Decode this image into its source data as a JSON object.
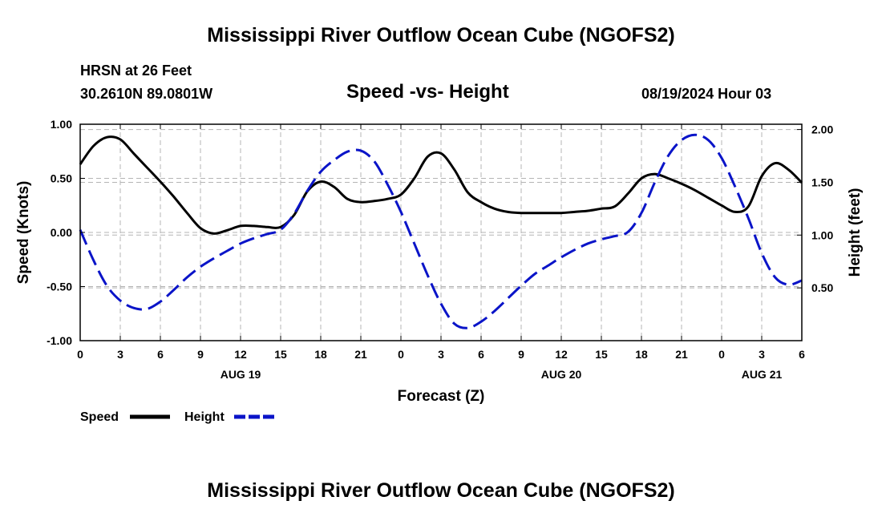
{
  "page": {
    "title_top": "Mississippi River Outflow Ocean Cube (NGOFS2)",
    "title_bottom": "Mississippi River Outflow Ocean Cube (NGOFS2)",
    "station": "HRSN at 26 Feet",
    "coords": "30.2610N  89.0801W",
    "plot_title": "Speed -vs- Height",
    "datetime": "08/19/2024 Hour 03"
  },
  "chart_data": {
    "type": "line",
    "title": "Speed -vs- Height",
    "xlabel": "Forecast (Z)",
    "ylabel_left": "Speed (Knots)",
    "ylabel_right": "Height (feet)",
    "x_range": [
      0,
      54
    ],
    "ylim_left": [
      -1.0,
      1.0
    ],
    "ylim_right": [
      0.0,
      2.05
    ],
    "x_ticks": [
      0,
      3,
      6,
      9,
      12,
      15,
      18,
      21,
      24,
      27,
      30,
      33,
      36,
      39,
      42,
      45,
      48,
      51,
      54
    ],
    "x_tick_labels": [
      "0",
      "3",
      "6",
      "9",
      "12",
      "15",
      "18",
      "21",
      "0",
      "3",
      "6",
      "9",
      "12",
      "15",
      "18",
      "21",
      "0",
      "3",
      "6"
    ],
    "date_labels": [
      {
        "x": 12,
        "label": "AUG 19"
      },
      {
        "x": 36,
        "label": "AUG 20"
      },
      {
        "x": 51,
        "label": "AUG 21"
      }
    ],
    "y_left_ticks": [
      1.0,
      0.5,
      0.0,
      -0.5,
      -1.0
    ],
    "y_left_tick_labels": [
      "1.00",
      "0.50",
      "0.00",
      "-0.50",
      "-1.00"
    ],
    "y_right_ticks": [
      2.0,
      1.5,
      1.0,
      0.5
    ],
    "y_right_tick_labels": [
      "2.00",
      "1.50",
      "1.00",
      "0.50"
    ],
    "grid": true,
    "series": [
      {
        "name": "Speed",
        "axis": "left",
        "color": "#000000",
        "style": "solid",
        "x": [
          0,
          1,
          2,
          3,
          4,
          5,
          6,
          7,
          8,
          9,
          10,
          11,
          12,
          13,
          14,
          15,
          16,
          17,
          18,
          19,
          20,
          21,
          22,
          23,
          24,
          25,
          26,
          27,
          28,
          29,
          30,
          31,
          32,
          33,
          34,
          35,
          36,
          37,
          38,
          39,
          40,
          41,
          42,
          43,
          44,
          45,
          46,
          47,
          48,
          49,
          50,
          51,
          52,
          53,
          54
        ],
        "values": [
          0.63,
          0.8,
          0.88,
          0.86,
          0.73,
          0.6,
          0.47,
          0.33,
          0.18,
          0.04,
          -0.01,
          0.02,
          0.06,
          0.06,
          0.05,
          0.05,
          0.16,
          0.38,
          0.47,
          0.42,
          0.31,
          0.28,
          0.29,
          0.31,
          0.35,
          0.5,
          0.7,
          0.73,
          0.58,
          0.37,
          0.28,
          0.22,
          0.19,
          0.18,
          0.18,
          0.18,
          0.18,
          0.19,
          0.2,
          0.22,
          0.24,
          0.36,
          0.5,
          0.54,
          0.5,
          0.45,
          0.39,
          0.32,
          0.25,
          0.19,
          0.24,
          0.52,
          0.64,
          0.58,
          0.46
        ]
      },
      {
        "name": "Height",
        "axis": "right",
        "color": "#0a14c8",
        "style": "dashed",
        "x": [
          0,
          1,
          2,
          3,
          4,
          5,
          6,
          7,
          8,
          9,
          10,
          11,
          12,
          13,
          14,
          15,
          16,
          17,
          18,
          19,
          20,
          21,
          22,
          23,
          24,
          25,
          26,
          27,
          28,
          29,
          30,
          31,
          32,
          33,
          34,
          35,
          36,
          37,
          38,
          39,
          40,
          41,
          42,
          43,
          44,
          45,
          46,
          47,
          48,
          49,
          50,
          51,
          52,
          53,
          54
        ],
        "values": [
          1.05,
          0.76,
          0.52,
          0.38,
          0.31,
          0.3,
          0.37,
          0.48,
          0.6,
          0.7,
          0.78,
          0.85,
          0.92,
          0.97,
          1.01,
          1.05,
          1.2,
          1.42,
          1.6,
          1.71,
          1.79,
          1.8,
          1.7,
          1.48,
          1.22,
          0.92,
          0.62,
          0.35,
          0.16,
          0.12,
          0.18,
          0.28,
          0.4,
          0.52,
          0.63,
          0.71,
          0.79,
          0.86,
          0.92,
          0.96,
          0.99,
          1.03,
          1.21,
          1.5,
          1.75,
          1.9,
          1.95,
          1.9,
          1.73,
          1.46,
          1.16,
          0.83,
          0.6,
          0.53,
          0.57
        ]
      }
    ],
    "legend": [
      {
        "label": "Speed",
        "color": "#000000",
        "style": "solid"
      },
      {
        "label": "Height",
        "color": "#0a14c8",
        "style": "dashed"
      }
    ],
    "legend_position": "bottom-left"
  }
}
